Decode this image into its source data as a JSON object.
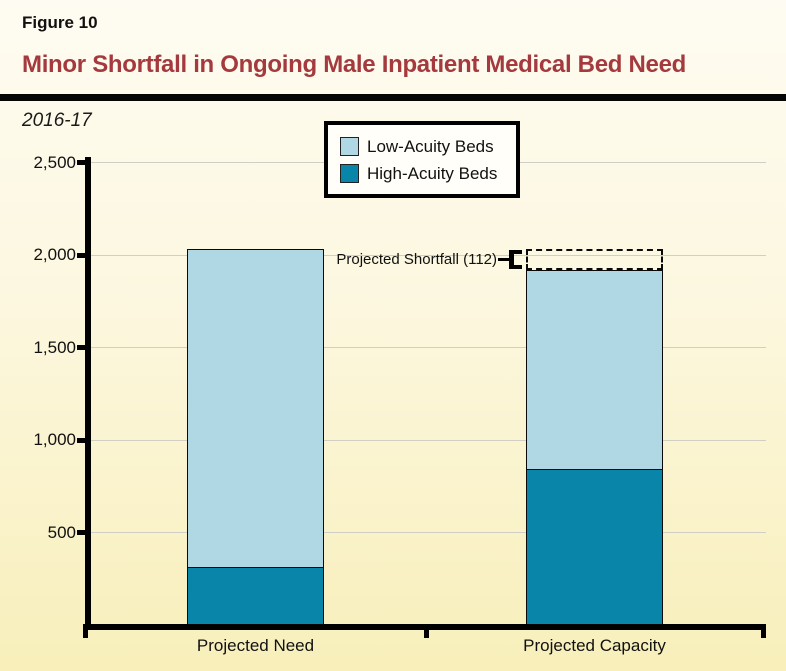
{
  "page": {
    "figure_label": "Figure 10",
    "title": "Minor Shortfall in Ongoing Male Inpatient Medical Bed Need",
    "subtitle": "2016-17"
  },
  "colors": {
    "title_red": "#A43A3D",
    "low_acuity_blue": "#B0D8E4",
    "high_acuity_teal": "#0885A8",
    "axis_black": "#000000",
    "gridline_gray": "#D0CFC4"
  },
  "legend": {
    "items": [
      {
        "label": "Low-Acuity Beds",
        "color": "#B0D8E4"
      },
      {
        "label": "High-Acuity Beds",
        "color": "#0885A8"
      }
    ]
  },
  "chart_data": {
    "type": "bar",
    "stacked": true,
    "title": "Minor Shortfall in Ongoing Male Inpatient Medical Bed Need",
    "subtitle": "2016-17",
    "categories": [
      "Projected Need",
      "Projected Capacity"
    ],
    "series": [
      {
        "name": "High-Acuity Beds",
        "color": "#0885A8",
        "values": [
          311,
          843
        ]
      },
      {
        "name": "Low-Acuity Beds",
        "color": "#B0D8E4",
        "values": [
          1720,
          1076
        ]
      }
    ],
    "totals": [
      2031,
      1919
    ],
    "annotation": {
      "label": "Projected Shortfall (112)",
      "value": 112,
      "target_category": "Projected Capacity"
    },
    "ylim": [
      0,
      2500
    ],
    "yticks": [
      500,
      1000,
      1500,
      2000,
      2500
    ],
    "ytick_labels": [
      "500",
      "1,000",
      "1,500",
      "2,000",
      "2,500"
    ],
    "xlabel": "",
    "ylabel": "",
    "grid": true,
    "legend_position": "top-center"
  }
}
